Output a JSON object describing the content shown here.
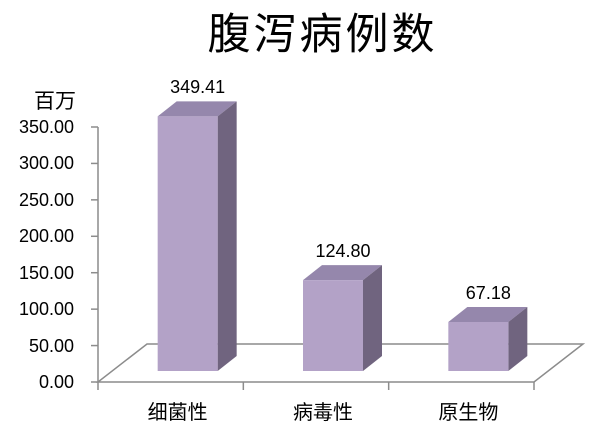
{
  "chart_data": {
    "type": "bar",
    "variant": "3d-column",
    "title": "腹泻病例数",
    "unit_label": "百万",
    "categories": [
      "细菌性",
      "病毒性",
      "原生物"
    ],
    "values": [
      349.41,
      124.8,
      67.18
    ],
    "data_labels": [
      "349.41",
      "124.80",
      "67.18"
    ],
    "y_ticks": [
      "0.00",
      "50.00",
      "100.00",
      "150.00",
      "200.00",
      "250.00",
      "300.00",
      "350.00"
    ],
    "ylim": [
      0,
      350
    ],
    "xlabel": "",
    "ylabel": "百万",
    "grid": false,
    "legend": "none",
    "colors": {
      "bar_front": "#B3A2C7",
      "bar_top": "#9587AC",
      "bar_side": "#70647F",
      "axis": "#8C8C8C",
      "text": "#000000",
      "background": "#FFFFFF"
    }
  }
}
